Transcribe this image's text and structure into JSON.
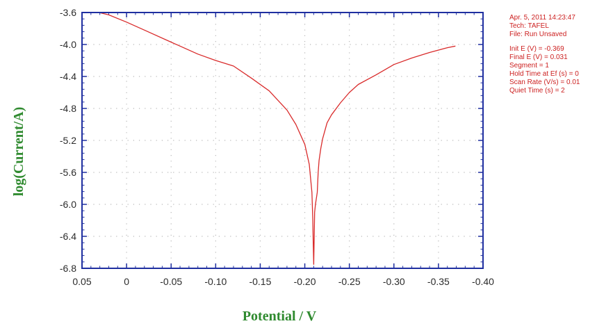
{
  "chart_data": {
    "type": "line",
    "title": "",
    "xlabel": "Potential / V",
    "ylabel": "log(Current/A)",
    "xlim": [
      0.05,
      -0.4
    ],
    "ylim": [
      -6.8,
      -3.6
    ],
    "x_ticks": [
      "0.05",
      "0",
      "-0.05",
      "-0.10",
      "-0.15",
      "-0.20",
      "-0.25",
      "-0.30",
      "-0.35",
      "-0.40"
    ],
    "x_tick_values": [
      0.05,
      0,
      -0.05,
      -0.1,
      -0.15,
      -0.2,
      -0.25,
      -0.3,
      -0.35,
      -0.4
    ],
    "y_ticks": [
      "-3.6",
      "-4.0",
      "-4.4",
      "-4.8",
      "-5.2",
      "-5.6",
      "-6.0",
      "-6.4",
      "-6.8"
    ],
    "y_tick_values": [
      -3.6,
      -4.0,
      -4.4,
      -4.8,
      -5.2,
      -5.6,
      -6.0,
      -6.4,
      -6.8
    ],
    "grid": true,
    "series": [
      {
        "color": "#d92b2b",
        "x": [
          0.031,
          0.02,
          0.0,
          -0.02,
          -0.05,
          -0.08,
          -0.1,
          -0.12,
          -0.14,
          -0.16,
          -0.18,
          -0.19,
          -0.2,
          -0.205,
          -0.208,
          -0.209,
          -0.2095,
          -0.21,
          -0.2105,
          -0.211,
          -0.212,
          -0.214,
          -0.215,
          -0.216,
          -0.218,
          -0.22,
          -0.225,
          -0.23,
          -0.24,
          -0.25,
          -0.26,
          -0.28,
          -0.3,
          -0.32,
          -0.34,
          -0.36,
          -0.369
        ],
        "y": [
          -3.6,
          -3.63,
          -3.72,
          -3.82,
          -3.97,
          -4.12,
          -4.2,
          -4.27,
          -4.42,
          -4.58,
          -4.82,
          -5.0,
          -5.25,
          -5.5,
          -5.85,
          -6.2,
          -6.5,
          -6.75,
          -6.45,
          -6.1,
          -6.0,
          -5.85,
          -5.6,
          -5.45,
          -5.3,
          -5.18,
          -4.98,
          -4.88,
          -4.73,
          -4.6,
          -4.5,
          -4.38,
          -4.25,
          -4.17,
          -4.1,
          -4.04,
          -4.02
        ]
      }
    ]
  },
  "info_panel": {
    "date": "Apr. 5, 2011   14:23:47",
    "tech": "Tech: TAFEL",
    "file": "File: Run Unsaved",
    "init_e": "Init E (V) = -0.369",
    "final_e": "Final E (V) = 0.031",
    "segment": "Segment = 1",
    "hold_time": "Hold Time at Ef (s) = 0",
    "scan_rate": "Scan Rate (V/s) = 0.01",
    "quiet_time": "Quiet Time (s) = 2"
  },
  "colors": {
    "axis": "#1f2fa0",
    "curve": "#d92b2b",
    "axis_title": "#2f8a2f",
    "info_text": "#cc1f1f",
    "grid": "#b8b8b8"
  }
}
